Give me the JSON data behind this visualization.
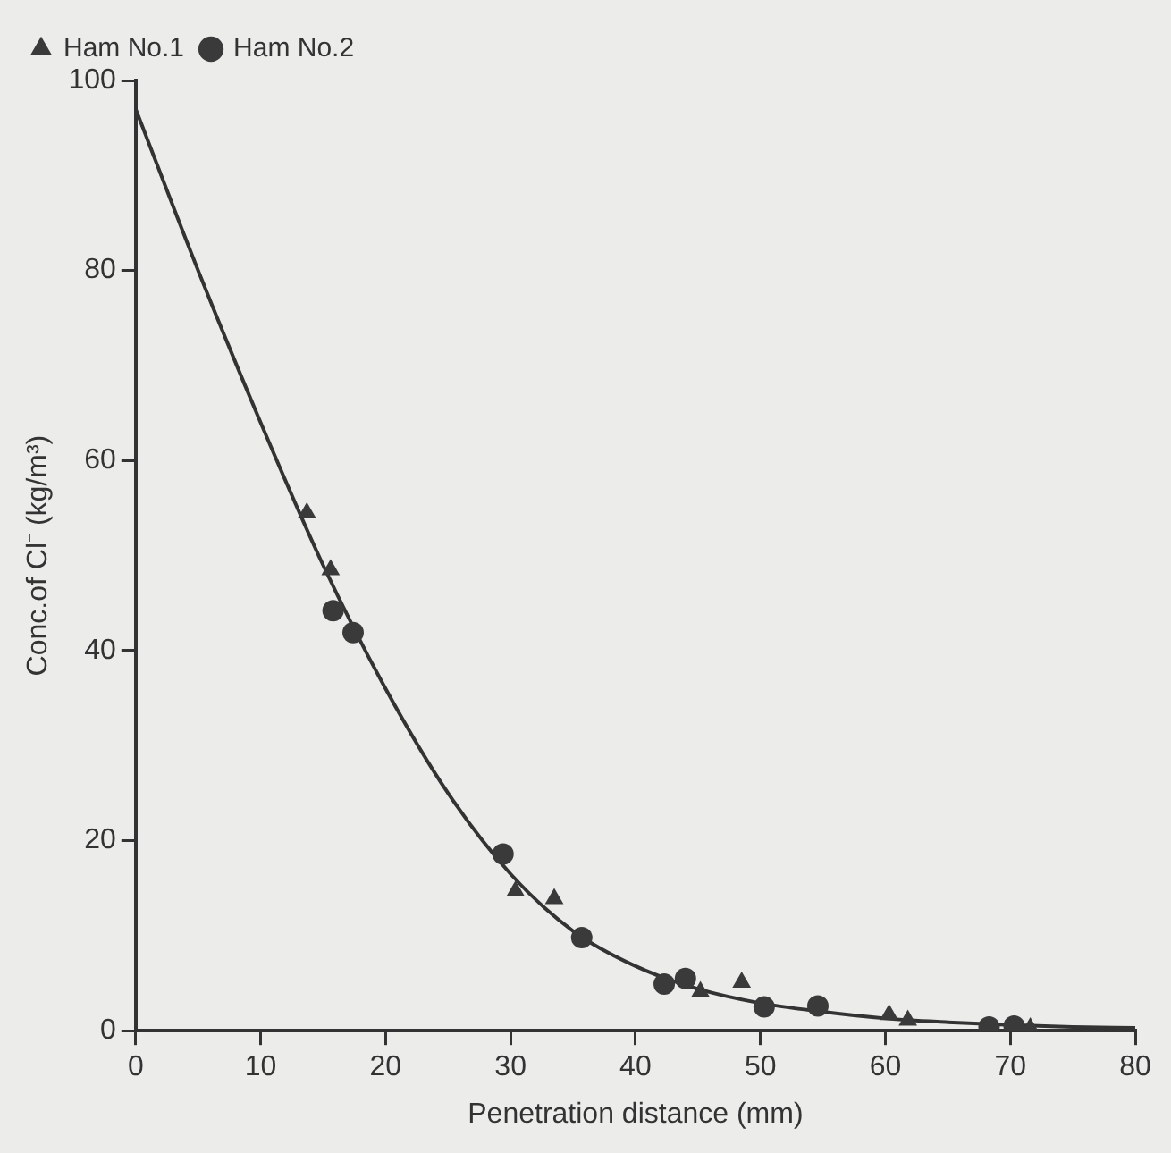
{
  "chart_data": {
    "type": "scatter",
    "xlabel": "Penetration distance (mm)",
    "ylabel": "Conc.of Cl⁻ (kg/m³)",
    "xlim": [
      0,
      80
    ],
    "xticks": [
      0,
      10,
      20,
      30,
      40,
      50,
      60,
      70,
      80
    ],
    "ylim": [
      0,
      100
    ],
    "yticks": [
      0,
      20,
      40,
      60,
      80,
      100
    ],
    "grid": false,
    "legend": "top left",
    "series": [
      {
        "name": "Ham No.1",
        "marker": "triangle",
        "color": "#3a3a3a",
        "x": [
          13.7,
          15.6,
          30.4,
          33.5,
          45.2,
          48.5,
          60.3,
          61.8,
          71.6
        ],
        "values": [
          54.5,
          48.5,
          14.7,
          13.9,
          4.1,
          5.1,
          1.7,
          1.1,
          0.3
        ]
      },
      {
        "name": "Ham No.2",
        "marker": "circle",
        "color": "#3a3a3a",
        "x": [
          15.8,
          17.4,
          29.4,
          35.7,
          42.3,
          44.0,
          50.3,
          54.6,
          68.3,
          70.3
        ],
        "values": [
          44.2,
          41.9,
          18.6,
          9.8,
          4.9,
          5.5,
          2.5,
          2.6,
          0.4,
          0.5
        ]
      },
      {
        "type": "line",
        "marker": "none",
        "line_style": "solid",
        "color": "#333333",
        "x": [
          0,
          5,
          10,
          15,
          20,
          25,
          30,
          35,
          40,
          45,
          50,
          55,
          60,
          65,
          70,
          75,
          80
        ],
        "values": [
          97,
          80,
          64,
          49,
          36,
          25,
          16.5,
          10.5,
          6.8,
          4.4,
          2.9,
          2,
          1.3,
          0.9,
          0.6,
          0.4,
          0.3
        ]
      }
    ]
  }
}
